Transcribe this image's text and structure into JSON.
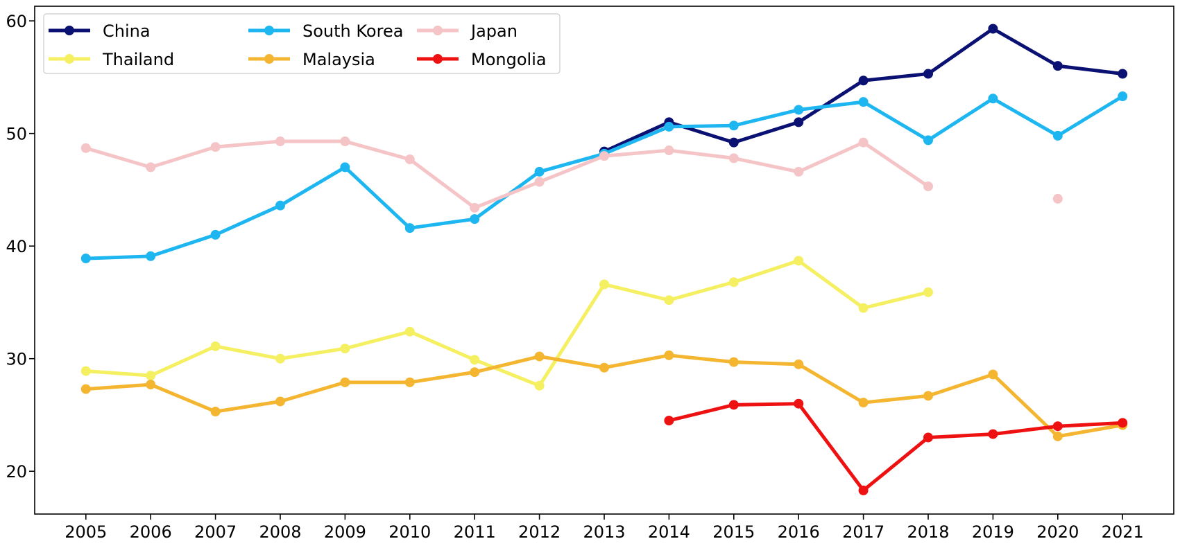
{
  "chart_data": {
    "type": "line",
    "title": "",
    "xlabel": "",
    "ylabel": "",
    "x": [
      2005,
      2006,
      2007,
      2008,
      2009,
      2010,
      2011,
      2012,
      2013,
      2014,
      2015,
      2016,
      2017,
      2018,
      2019,
      2020,
      2021
    ],
    "xlim": [
      2004.21,
      2021.79
    ],
    "ylim": [
      16.2,
      61.3
    ],
    "yticks": [
      20,
      30,
      40,
      50,
      60
    ],
    "grid": false,
    "legend": {
      "placement": "top-left",
      "columns": 3
    },
    "series": [
      {
        "name": "China",
        "color": "#0a1172",
        "values": [
          null,
          null,
          null,
          null,
          null,
          null,
          null,
          null,
          48.4,
          51.0,
          49.2,
          51.0,
          54.7,
          55.3,
          59.3,
          56.0,
          55.3
        ]
      },
      {
        "name": "South Korea",
        "color": "#1eb6f0",
        "values": [
          38.9,
          39.1,
          41.0,
          43.6,
          47.0,
          41.6,
          42.4,
          46.6,
          48.2,
          50.6,
          50.7,
          52.1,
          52.8,
          49.4,
          53.1,
          49.8,
          53.3
        ]
      },
      {
        "name": "Japan",
        "color": "#f5c4c6",
        "values": [
          48.7,
          47.0,
          48.8,
          49.3,
          49.3,
          47.7,
          43.4,
          45.7,
          48.0,
          48.5,
          47.8,
          46.6,
          49.2,
          45.3,
          null,
          44.2,
          null
        ]
      },
      {
        "name": "Thailand",
        "color": "#f5ef62",
        "values": [
          28.9,
          28.5,
          31.1,
          30.0,
          30.9,
          32.4,
          29.9,
          27.6,
          36.6,
          35.2,
          36.8,
          38.7,
          34.5,
          35.9,
          null,
          null,
          null
        ]
      },
      {
        "name": "Malaysia",
        "color": "#f4b630",
        "values": [
          27.3,
          27.7,
          25.3,
          26.2,
          27.9,
          27.9,
          28.8,
          30.2,
          29.2,
          30.3,
          29.7,
          29.5,
          26.1,
          26.7,
          28.6,
          23.1,
          24.1
        ]
      },
      {
        "name": "Mongolia",
        "color": "#ee1111",
        "values": [
          null,
          null,
          null,
          null,
          null,
          null,
          null,
          null,
          null,
          24.5,
          25.9,
          26.0,
          18.3,
          23.0,
          23.3,
          24.0,
          24.3
        ]
      }
    ]
  }
}
